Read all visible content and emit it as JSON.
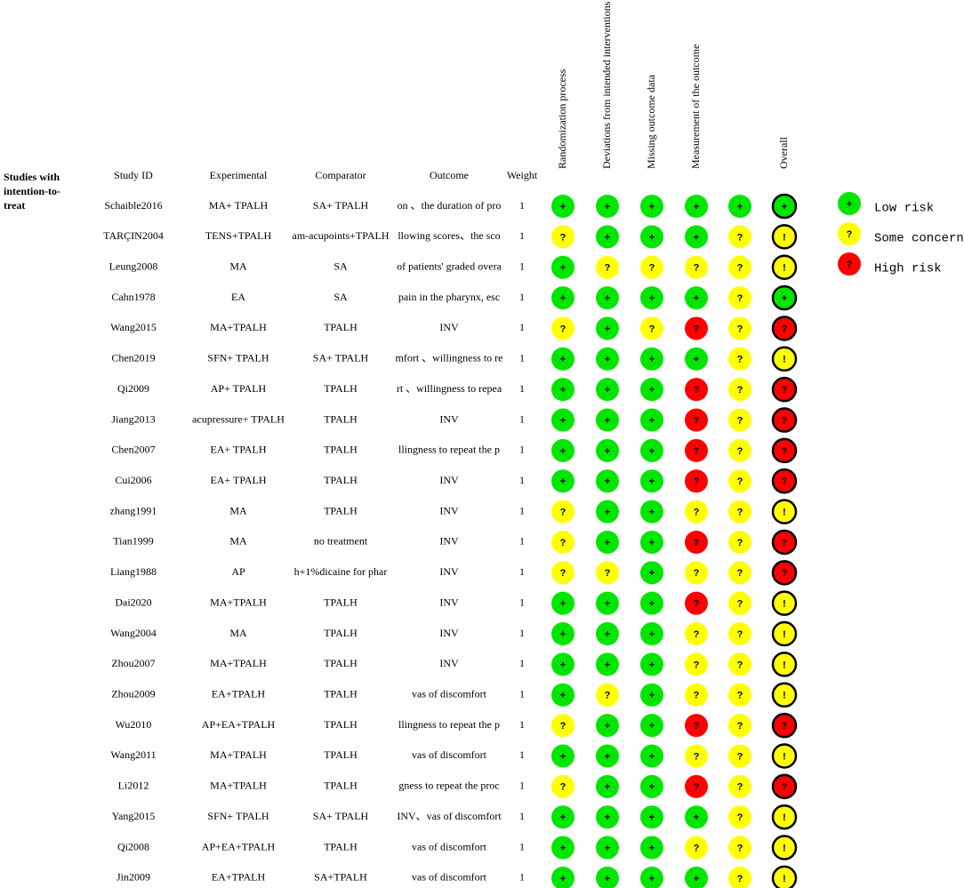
{
  "section_label": [
    "Studies with",
    "intention-to-",
    "treat"
  ],
  "columns": [
    "Study ID",
    "Experimental",
    "Comparator",
    "Outcome",
    "Weight"
  ],
  "domains": [
    "Randomization process",
    "Deviations from intended interventions",
    "Missing outcome data",
    "Measurement of the outcome",
    null,
    "Overall"
  ],
  "legend": [
    {
      "symbol": "+",
      "color": "#00e600",
      "label": "Low risk"
    },
    {
      "symbol": "?",
      "color": "#ffff00",
      "label": "Some concerns"
    },
    {
      "symbol": "?",
      "color": "#ff0000",
      "label": "High risk"
    }
  ],
  "rows": [
    {
      "cells": [
        "Schaible2016",
        "MA+ TPALH",
        "SA+ TPALH",
        "on 、the duration of pro",
        "1"
      ],
      "j": [
        [
          "+",
          "#00e600"
        ],
        [
          "+",
          "#00e600"
        ],
        [
          "+",
          "#00e600"
        ],
        [
          "+",
          "#00e600"
        ],
        [
          "+",
          "#00e600"
        ],
        [
          "+",
          "#00e600"
        ]
      ]
    },
    {
      "cells": [
        "TARÇIN2004",
        "TENS+TPALH",
        "am-acupoints+TPALH",
        "llowing scores、the sco",
        "1"
      ],
      "j": [
        [
          "?",
          "#ffff00"
        ],
        [
          "+",
          "#00e600"
        ],
        [
          "+",
          "#00e600"
        ],
        [
          "+",
          "#00e600"
        ],
        [
          "?",
          "#ffff00"
        ],
        [
          "!",
          "#ffff00"
        ]
      ]
    },
    {
      "cells": [
        "Leung2008",
        "MA",
        "SA",
        "of patients' graded overa",
        "1"
      ],
      "j": [
        [
          "+",
          "#00e600"
        ],
        [
          "?",
          "#ffff00"
        ],
        [
          "?",
          "#ffff00"
        ],
        [
          "?",
          "#ffff00"
        ],
        [
          "?",
          "#ffff00"
        ],
        [
          "!",
          "#ffff00"
        ]
      ]
    },
    {
      "cells": [
        "Cahn1978",
        "EA",
        "SA",
        "pain in the pharynx, esc",
        "1"
      ],
      "j": [
        [
          "+",
          "#00e600"
        ],
        [
          "+",
          "#00e600"
        ],
        [
          "+",
          "#00e600"
        ],
        [
          "+",
          "#00e600"
        ],
        [
          "?",
          "#ffff00"
        ],
        [
          "+",
          "#00e600"
        ]
      ]
    },
    {
      "cells": [
        "Wang2015",
        "MA+TPALH",
        "TPALH",
        "INV",
        "1"
      ],
      "j": [
        [
          "?",
          "#ffff00"
        ],
        [
          "+",
          "#00e600"
        ],
        [
          "?",
          "#ffff00"
        ],
        [
          "?",
          "#ff0000"
        ],
        [
          "?",
          "#ffff00"
        ],
        [
          "?",
          "#ff0000"
        ]
      ]
    },
    {
      "cells": [
        "Chen2019",
        "SFN+ TPALH",
        "SA+ TPALH",
        "mfort 、willingness to re",
        "1"
      ],
      "j": [
        [
          "+",
          "#00e600"
        ],
        [
          "+",
          "#00e600"
        ],
        [
          "+",
          "#00e600"
        ],
        [
          "+",
          "#00e600"
        ],
        [
          "?",
          "#ffff00"
        ],
        [
          "!",
          "#ffff00"
        ]
      ]
    },
    {
      "cells": [
        "Qi2009",
        "AP+ TPALH",
        "TPALH",
        "rt 、willingness to repea",
        "1"
      ],
      "j": [
        [
          "+",
          "#00e600"
        ],
        [
          "+",
          "#00e600"
        ],
        [
          "+",
          "#00e600"
        ],
        [
          "?",
          "#ff0000"
        ],
        [
          "?",
          "#ffff00"
        ],
        [
          "?",
          "#ff0000"
        ]
      ]
    },
    {
      "cells": [
        "Jiang2013",
        "acupressure+ TPALH",
        "TPALH",
        "INV",
        "1"
      ],
      "j": [
        [
          "+",
          "#00e600"
        ],
        [
          "+",
          "#00e600"
        ],
        [
          "+",
          "#00e600"
        ],
        [
          "?",
          "#ff0000"
        ],
        [
          "?",
          "#ffff00"
        ],
        [
          "?",
          "#ff0000"
        ]
      ]
    },
    {
      "cells": [
        "Chen2007",
        "EA+ TPALH",
        "TPALH",
        "llingness to repeat the p",
        "1"
      ],
      "j": [
        [
          "+",
          "#00e600"
        ],
        [
          "+",
          "#00e600"
        ],
        [
          "+",
          "#00e600"
        ],
        [
          "?",
          "#ff0000"
        ],
        [
          "?",
          "#ffff00"
        ],
        [
          "?",
          "#ff0000"
        ]
      ]
    },
    {
      "cells": [
        "Cui2006",
        "EA+ TPALH",
        "TPALH",
        "INV",
        "1"
      ],
      "j": [
        [
          "+",
          "#00e600"
        ],
        [
          "+",
          "#00e600"
        ],
        [
          "+",
          "#00e600"
        ],
        [
          "?",
          "#ff0000"
        ],
        [
          "?",
          "#ffff00"
        ],
        [
          "?",
          "#ff0000"
        ]
      ]
    },
    {
      "cells": [
        "zhang1991",
        "MA",
        "TPALH",
        "INV",
        "1"
      ],
      "j": [
        [
          "?",
          "#ffff00"
        ],
        [
          "+",
          "#00e600"
        ],
        [
          "+",
          "#00e600"
        ],
        [
          "?",
          "#ffff00"
        ],
        [
          "?",
          "#ffff00"
        ],
        [
          "!",
          "#ffff00"
        ]
      ]
    },
    {
      "cells": [
        "Tian1999",
        "MA",
        "no treatment",
        "INV",
        "1"
      ],
      "j": [
        [
          "?",
          "#ffff00"
        ],
        [
          "+",
          "#00e600"
        ],
        [
          "+",
          "#00e600"
        ],
        [
          "?",
          "#ff0000"
        ],
        [
          "?",
          "#ffff00"
        ],
        [
          "?",
          "#ff0000"
        ]
      ]
    },
    {
      "cells": [
        "Liang1988",
        "AP",
        "h+1%dicaine for phar",
        "INV",
        "1"
      ],
      "j": [
        [
          "?",
          "#ffff00"
        ],
        [
          "?",
          "#ffff00"
        ],
        [
          "+",
          "#00e600"
        ],
        [
          "?",
          "#ffff00"
        ],
        [
          "?",
          "#ffff00"
        ],
        [
          "?",
          "#ff0000"
        ]
      ]
    },
    {
      "cells": [
        "Dai2020",
        "MA+TPALH",
        "TPALH",
        "INV",
        "1"
      ],
      "j": [
        [
          "+",
          "#00e600"
        ],
        [
          "+",
          "#00e600"
        ],
        [
          "+",
          "#00e600"
        ],
        [
          "?",
          "#ff0000"
        ],
        [
          "?",
          "#ffff00"
        ],
        [
          "!",
          "#ffff00"
        ]
      ]
    },
    {
      "cells": [
        "Wang2004",
        "MA",
        "TPALH",
        "INV",
        "1"
      ],
      "j": [
        [
          "+",
          "#00e600"
        ],
        [
          "+",
          "#00e600"
        ],
        [
          "+",
          "#00e600"
        ],
        [
          "?",
          "#ffff00"
        ],
        [
          "?",
          "#ffff00"
        ],
        [
          "!",
          "#ffff00"
        ]
      ]
    },
    {
      "cells": [
        "Zhou2007",
        "MA+TPALH",
        "TPALH",
        "INV",
        "1"
      ],
      "j": [
        [
          "+",
          "#00e600"
        ],
        [
          "+",
          "#00e600"
        ],
        [
          "+",
          "#00e600"
        ],
        [
          "?",
          "#ffff00"
        ],
        [
          "?",
          "#ffff00"
        ],
        [
          "!",
          "#ffff00"
        ]
      ]
    },
    {
      "cells": [
        "Zhou2009",
        "EA+TPALH",
        "TPALH",
        "vas of discomfort",
        "1"
      ],
      "j": [
        [
          "+",
          "#00e600"
        ],
        [
          "?",
          "#ffff00"
        ],
        [
          "+",
          "#00e600"
        ],
        [
          "?",
          "#ffff00"
        ],
        [
          "?",
          "#ffff00"
        ],
        [
          "!",
          "#ffff00"
        ]
      ]
    },
    {
      "cells": [
        "Wu2010",
        "AP+EA+TPALH",
        "TPALH",
        "llingness to repeat the p",
        "1"
      ],
      "j": [
        [
          "?",
          "#ffff00"
        ],
        [
          "+",
          "#00e600"
        ],
        [
          "+",
          "#00e600"
        ],
        [
          "?",
          "#ff0000"
        ],
        [
          "?",
          "#ffff00"
        ],
        [
          "?",
          "#ff0000"
        ]
      ]
    },
    {
      "cells": [
        "Wang2011",
        "MA+TPALH",
        "TPALH",
        "vas of discomfort",
        "1"
      ],
      "j": [
        [
          "+",
          "#00e600"
        ],
        [
          "+",
          "#00e600"
        ],
        [
          "+",
          "#00e600"
        ],
        [
          "?",
          "#ffff00"
        ],
        [
          "?",
          "#ffff00"
        ],
        [
          "!",
          "#ffff00"
        ]
      ]
    },
    {
      "cells": [
        "Li2012",
        "MA+TPALH",
        "TPALH",
        "gness to repeat the proc",
        "1"
      ],
      "j": [
        [
          "?",
          "#ffff00"
        ],
        [
          "+",
          "#00e600"
        ],
        [
          "+",
          "#00e600"
        ],
        [
          "?",
          "#ff0000"
        ],
        [
          "?",
          "#ffff00"
        ],
        [
          "?",
          "#ff0000"
        ]
      ]
    },
    {
      "cells": [
        "Yang2015",
        "SFN+ TPALH",
        "SA+ TPALH",
        "INV、vas of discomfort",
        "1"
      ],
      "j": [
        [
          "+",
          "#00e600"
        ],
        [
          "+",
          "#00e600"
        ],
        [
          "+",
          "#00e600"
        ],
        [
          "+",
          "#00e600"
        ],
        [
          "?",
          "#ffff00"
        ],
        [
          "!",
          "#ffff00"
        ]
      ]
    },
    {
      "cells": [
        "Qi2008",
        "AP+EA+TPALH",
        "TPALH",
        "vas of discomfort",
        "1"
      ],
      "j": [
        [
          "+",
          "#00e600"
        ],
        [
          "+",
          "#00e600"
        ],
        [
          "+",
          "#00e600"
        ],
        [
          "?",
          "#ffff00"
        ],
        [
          "?",
          "#ffff00"
        ],
        [
          "!",
          "#ffff00"
        ]
      ]
    },
    {
      "cells": [
        "Jin2009",
        "EA+TPALH",
        "SA+TPALH",
        "vas of discomfort",
        "1"
      ],
      "j": [
        [
          "+",
          "#00e600"
        ],
        [
          "+",
          "#00e600"
        ],
        [
          "+",
          "#00e600"
        ],
        [
          "+",
          "#00e600"
        ],
        [
          "?",
          "#ffff00"
        ],
        [
          "!",
          "#ffff00"
        ]
      ]
    }
  ]
}
